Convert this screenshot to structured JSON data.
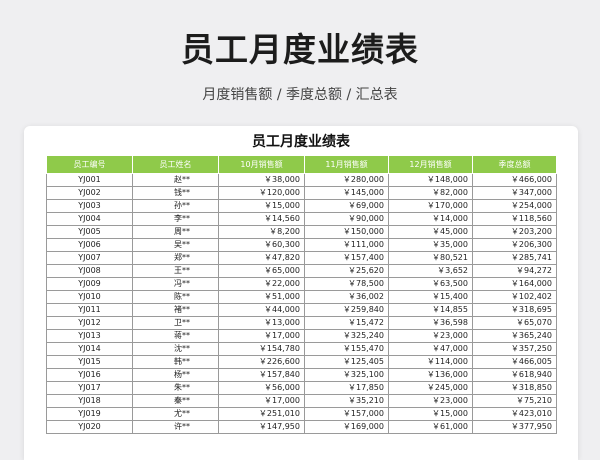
{
  "header": {
    "title": "员工月度业绩表",
    "subtitle": "月度销售额 / 季度总额 / 汇总表"
  },
  "sheet": {
    "title": "员工月度业绩表",
    "columns": [
      "员工编号",
      "员工姓名",
      "10月销售额",
      "11月销售额",
      "12月销售额",
      "季度总额"
    ],
    "rows": [
      [
        "YJ001",
        "赵**",
        "￥38,000",
        "￥280,000",
        "￥148,000",
        "￥466,000"
      ],
      [
        "YJ002",
        "钱**",
        "￥120,000",
        "￥145,000",
        "￥82,000",
        "￥347,000"
      ],
      [
        "YJ003",
        "孙**",
        "￥15,000",
        "￥69,000",
        "￥170,000",
        "￥254,000"
      ],
      [
        "YJ004",
        "李**",
        "￥14,560",
        "￥90,000",
        "￥14,000",
        "￥118,560"
      ],
      [
        "YJ005",
        "周**",
        "￥8,200",
        "￥150,000",
        "￥45,000",
        "￥203,200"
      ],
      [
        "YJ006",
        "吴**",
        "￥60,300",
        "￥111,000",
        "￥35,000",
        "￥206,300"
      ],
      [
        "YJ007",
        "郑**",
        "￥47,820",
        "￥157,400",
        "￥80,521",
        "￥285,741"
      ],
      [
        "YJ008",
        "王**",
        "￥65,000",
        "￥25,620",
        "￥3,652",
        "￥94,272"
      ],
      [
        "YJ009",
        "冯**",
        "￥22,000",
        "￥78,500",
        "￥63,500",
        "￥164,000"
      ],
      [
        "YJ010",
        "陈**",
        "￥51,000",
        "￥36,002",
        "￥15,400",
        "￥102,402"
      ],
      [
        "YJ011",
        "褚**",
        "￥44,000",
        "￥259,840",
        "￥14,855",
        "￥318,695"
      ],
      [
        "YJ012",
        "卫**",
        "￥13,000",
        "￥15,472",
        "￥36,598",
        "￥65,070"
      ],
      [
        "YJ013",
        "蒋**",
        "￥17,000",
        "￥325,240",
        "￥23,000",
        "￥365,240"
      ],
      [
        "YJ014",
        "沈**",
        "￥154,780",
        "￥155,470",
        "￥47,000",
        "￥357,250"
      ],
      [
        "YJ015",
        "韩**",
        "￥226,600",
        "￥125,405",
        "￥114,000",
        "￥466,005"
      ],
      [
        "YJ016",
        "杨**",
        "￥157,840",
        "￥325,100",
        "￥136,000",
        "￥618,940"
      ],
      [
        "YJ017",
        "朱**",
        "￥56,000",
        "￥17,850",
        "￥245,000",
        "￥318,850"
      ],
      [
        "YJ018",
        "秦**",
        "￥17,000",
        "￥35,210",
        "￥23,000",
        "￥75,210"
      ],
      [
        "YJ019",
        "尤**",
        "￥251,010",
        "￥157,000",
        "￥15,000",
        "￥423,010"
      ],
      [
        "YJ020",
        "许**",
        "￥147,950",
        "￥169,000",
        "￥61,000",
        "￥377,950"
      ]
    ]
  },
  "colors": {
    "header_green": "#8fca4a",
    "background": "#efeff1",
    "card": "#ffffff"
  }
}
